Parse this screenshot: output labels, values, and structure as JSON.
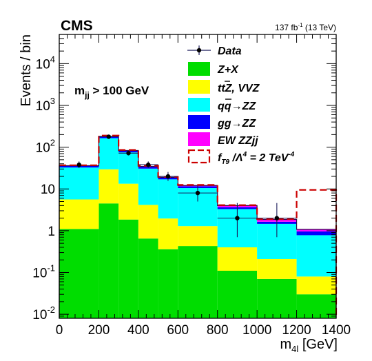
{
  "header": {
    "experiment": "CMS",
    "lumi_value": "137 fb",
    "lumi_exp": "-1",
    "lumi_energy": " (13 TeV)"
  },
  "annotation": {
    "main": "m",
    "sub": "jj",
    "rest": " > 100 GeV"
  },
  "axes": {
    "ylabel": "Events / bin",
    "xlabel_main": "m",
    "xlabel_sub": "4l",
    "xlabel_unit": " [GeV]"
  },
  "legend": {
    "data": "Data",
    "zx": "Z+X",
    "ttz_t": "t",
    "ttz_tbar": "t",
    "ttz_rest": "Z, VVZ",
    "qqzz_q": "q",
    "qqzz_qbar": "q",
    "qqzz_rest": "→ZZ",
    "ggzz": "gg→ZZ",
    "ewzz": "EW ZZjj",
    "ft9_f": "f",
    "ft9_sub": "T9",
    "ft9_mid": " /Λ",
    "ft9_exp4": "4",
    "ft9_eq": " = 2 TeV",
    "ft9_exp": "-4"
  },
  "chart_data": {
    "type": "bar",
    "title": "",
    "xlabel": "m4l [GeV]",
    "ylabel": "Events / bin",
    "xlim": [
      0,
      1400
    ],
    "ylim": [
      0.008,
      50000
    ],
    "yscale": "log",
    "bins": [
      0,
      200,
      300,
      400,
      500,
      600,
      800,
      1000,
      1200,
      1400
    ],
    "x_ticks": [
      0,
      200,
      400,
      600,
      800,
      1000,
      1200,
      1400
    ],
    "x_tick_labels": [
      "0",
      "200",
      "400",
      "600",
      "800",
      "1000",
      "1200",
      "1400"
    ],
    "y_ticks": [
      0.01,
      0.1,
      1,
      10,
      100,
      1000,
      10000
    ],
    "y_tick_labels": [
      {
        "base": "10",
        "exp": "-2"
      },
      {
        "base": "10",
        "exp": "-1"
      },
      {
        "base": "1",
        "exp": ""
      },
      {
        "base": "10",
        "exp": ""
      },
      {
        "base": "10",
        "exp": "2"
      },
      {
        "base": "10",
        "exp": "3"
      },
      {
        "base": "10",
        "exp": "4"
      }
    ],
    "stack": [
      {
        "name": "Z+X",
        "color": "#00dd00",
        "values": [
          1.1,
          4.5,
          1.85,
          0.65,
          0.36,
          0.43,
          0.11,
          0.07,
          0.03
        ]
      },
      {
        "name": "tt̄Z, VVZ",
        "color": "#ffff00",
        "values": [
          4.5,
          25,
          11.5,
          3.5,
          1.6,
          0.86,
          0.29,
          0.14,
          0.05
        ]
      },
      {
        "name": "qq̄→ZZ",
        "color": "#00ffff",
        "values": [
          27,
          135,
          62,
          26.5,
          15,
          9.2,
          2.9,
          1.25,
          0.7
        ]
      },
      {
        "name": "gg→ZZ",
        "color": "#0000ff",
        "values": [
          2.8,
          14,
          6.5,
          2.8,
          1.6,
          1.1,
          0.35,
          0.18,
          0.18
        ]
      },
      {
        "name": "EW ZZjj",
        "color": "#ff00ff",
        "values": [
          0.6,
          3,
          1.5,
          1.1,
          0.6,
          0.55,
          0.35,
          0.22,
          0.12
        ]
      }
    ],
    "stack_totals": [
      36,
      181,
      83,
      34.5,
      19,
      12.1,
      4.0,
      1.86,
      1.08
    ],
    "aqgc": {
      "name": "fT9/Λ4 = 2 TeV-4",
      "color": "#cc0000",
      "values": [
        37,
        190,
        86,
        36,
        19.5,
        12.5,
        4.1,
        1.9,
        9.5
      ]
    },
    "data": {
      "name": "Data",
      "x": [
        100,
        250,
        350,
        450,
        550,
        700,
        900,
        1100
      ],
      "xerr": [
        0,
        50,
        50,
        50,
        50,
        100,
        100,
        100
      ],
      "y": [
        38,
        178,
        72,
        38,
        20,
        8,
        2,
        2
      ],
      "ylow": [
        31.5,
        165,
        63.5,
        31.5,
        15.5,
        5.0,
        0.7,
        0.7
      ],
      "yhigh": [
        45.5,
        192,
        81.5,
        45.5,
        25.5,
        12.0,
        4.6,
        4.6
      ]
    }
  }
}
